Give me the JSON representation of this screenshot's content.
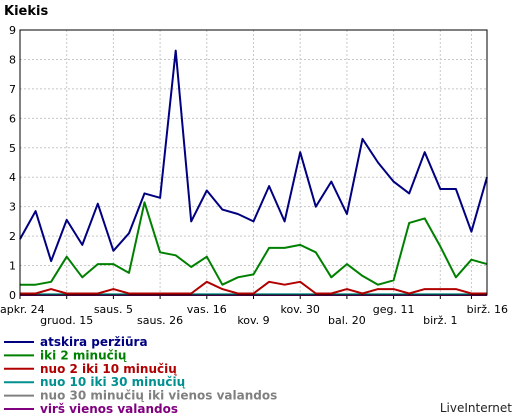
{
  "chart_data": {
    "type": "line",
    "ylabel": "Kiekis",
    "ylim": [
      0,
      9
    ],
    "yticks": [
      0,
      1,
      2,
      3,
      4,
      5,
      6,
      7,
      8,
      9
    ],
    "x_tick_labels": [
      "apkr. 24",
      "gruod. 15",
      "saus. 5",
      "saus. 26",
      "vas. 16",
      "kov. 9",
      "kov. 30",
      "bal. 20",
      "geg. 11",
      "birž. 1",
      "birž. 16"
    ],
    "x_tick_positions": [
      0,
      3,
      6,
      9,
      12,
      15,
      18,
      21,
      24,
      27,
      29
    ],
    "x_count": 31,
    "grid": true,
    "legend_position": "bottom-left",
    "series": [
      {
        "name": "atskira peržiūra",
        "color": "#000080",
        "values": [
          1.9,
          2.85,
          1.15,
          2.55,
          1.7,
          3.1,
          1.5,
          2.1,
          3.45,
          3.3,
          8.3,
          2.5,
          3.55,
          2.9,
          2.75,
          2.5,
          3.7,
          2.5,
          4.85,
          3.0,
          3.85,
          2.75,
          5.3,
          4.5,
          3.85,
          3.45,
          4.85,
          3.6,
          3.6,
          2.15,
          4.0
        ]
      },
      {
        "name": "iki 2 minučių",
        "color": "#008000",
        "values": [
          0.35,
          0.35,
          0.45,
          1.3,
          0.6,
          1.05,
          1.05,
          0.75,
          3.15,
          1.45,
          1.35,
          0.95,
          1.3,
          0.35,
          0.6,
          0.7,
          1.6,
          1.6,
          1.7,
          1.45,
          0.6,
          1.05,
          0.65,
          0.35,
          0.5,
          2.45,
          2.6,
          1.65,
          0.6,
          1.2,
          1.05
        ]
      },
      {
        "name": "nuo 2 iki 10 minučių",
        "color": "#b00000",
        "values": [
          0.05,
          0.05,
          0.2,
          0.05,
          0.05,
          0.05,
          0.2,
          0.05,
          0.05,
          0.05,
          0.05,
          0.05,
          0.45,
          0.2,
          0.05,
          0.05,
          0.45,
          0.35,
          0.45,
          0.05,
          0.05,
          0.2,
          0.05,
          0.2,
          0.2,
          0.05,
          0.2,
          0.2,
          0.2,
          0.05,
          0.05
        ]
      },
      {
        "name": "nuo 10 iki 30 minučių",
        "color": "#009090",
        "values": [
          0.02,
          0.02,
          0.02,
          0.02,
          0.02,
          0.02,
          0.02,
          0.02,
          0.02,
          0.02,
          0.02,
          0.02,
          0.02,
          0.02,
          0.02,
          0.02,
          0.02,
          0.02,
          0.02,
          0.02,
          0.02,
          0.02,
          0.02,
          0.02,
          0.02,
          0.02,
          0.02,
          0.02,
          0.02,
          0.02,
          0.02
        ]
      },
      {
        "name": "nuo 30 minučių iki vienos valandos",
        "color": "#808080",
        "values": [
          0.02,
          0.02,
          0.02,
          0.02,
          0.02,
          0.02,
          0.02,
          0.02,
          0.02,
          0.02,
          0.02,
          0.02,
          0.02,
          0.02,
          0.02,
          0.02,
          0.02,
          0.02,
          0.02,
          0.02,
          0.02,
          0.02,
          0.02,
          0.02,
          0.02,
          0.02,
          0.02,
          0.02,
          0.02,
          0.02,
          0.02
        ]
      },
      {
        "name": "virš vienos valandos",
        "color": "#800080",
        "values": [
          0.0,
          0.0,
          0.0,
          0.0,
          0.0,
          0.0,
          0.0,
          0.0,
          0.0,
          0.0,
          0.0,
          0.0,
          0.0,
          0.0,
          0.0,
          0.0,
          0.0,
          0.0,
          0.0,
          0.0,
          0.0,
          0.0,
          0.0,
          0.0,
          0.0,
          0.0,
          0.0,
          0.0,
          0.0,
          0.0,
          0.0
        ]
      }
    ]
  },
  "brand": "LiveInternet"
}
